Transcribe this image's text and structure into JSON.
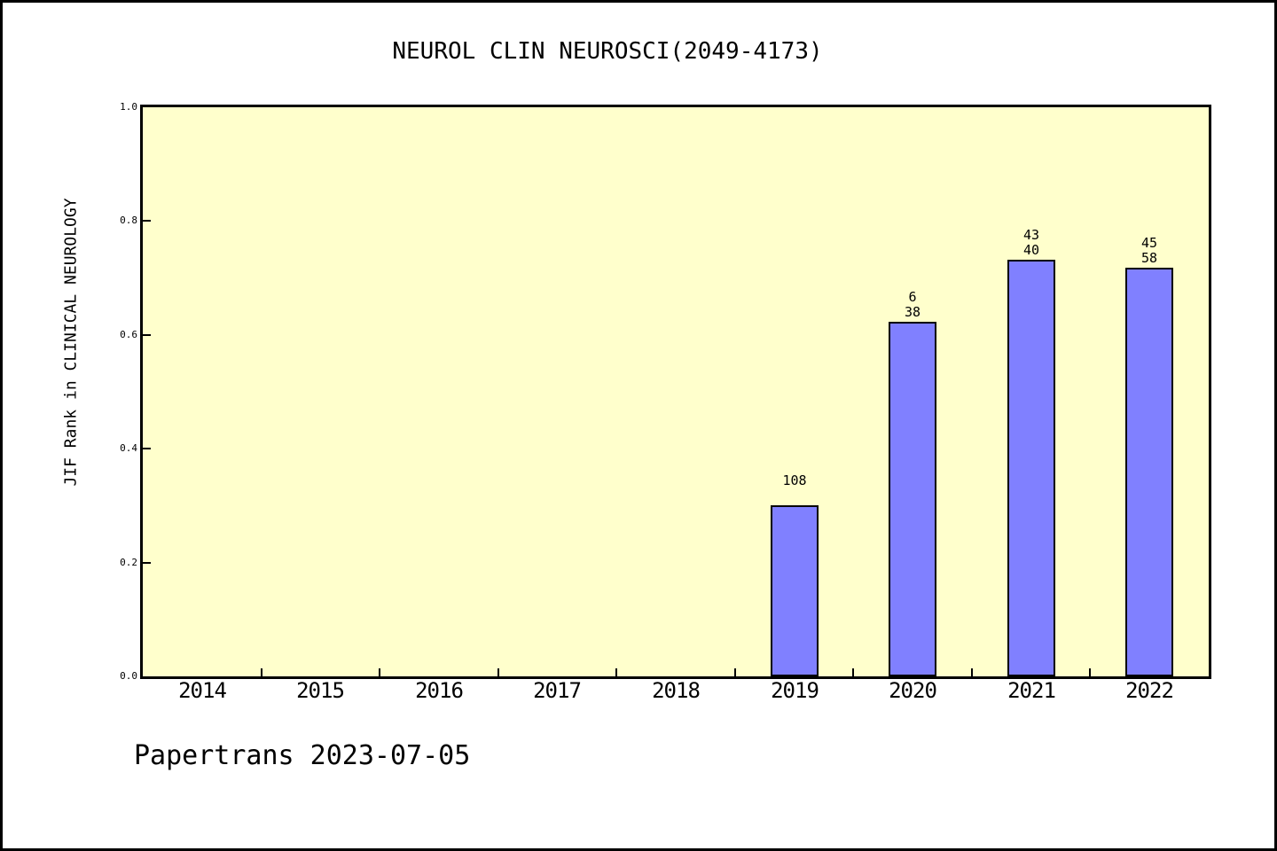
{
  "title": "NEUROL CLIN NEUROSCI(2049-4173)",
  "footer": "Papertrans 2023-07-05",
  "chart_data": {
    "type": "bar",
    "title": "NEUROL CLIN NEUROSCI(2049-4173)",
    "ylabel": "JIF Rank in CLINICAL NEUROLOGY",
    "xlabel": "",
    "categories": [
      "2014",
      "2015",
      "2016",
      "2017",
      "2018",
      "2019",
      "2020",
      "2021",
      "2022"
    ],
    "values": [
      null,
      null,
      null,
      null,
      null,
      0.301,
      0.623,
      0.732,
      0.718
    ],
    "bar_labels": [
      [],
      [],
      [],
      [],
      [],
      [
        "108"
      ],
      [
        "6",
        "38"
      ],
      [
        "43",
        "40"
      ],
      [
        "45",
        "58"
      ]
    ],
    "ylim": [
      0,
      1
    ],
    "yticks": [
      {
        "value": 0.0,
        "label": "0.0"
      },
      {
        "value": 0.2,
        "label": "0.2"
      },
      {
        "value": 0.4,
        "label": "0.4"
      },
      {
        "value": 0.6,
        "label": "0.6"
      },
      {
        "value": 0.8,
        "label": "0.8"
      },
      {
        "value": 1.0,
        "label": "1.0"
      }
    ],
    "grid": false,
    "legend": null,
    "colors": {
      "bar_fill": "#8080FF",
      "bar_border": "#000000",
      "plot_background": "#FFFFCC",
      "page_background": "#FFFFFF",
      "frame": "#000000",
      "text": "#000000"
    }
  }
}
